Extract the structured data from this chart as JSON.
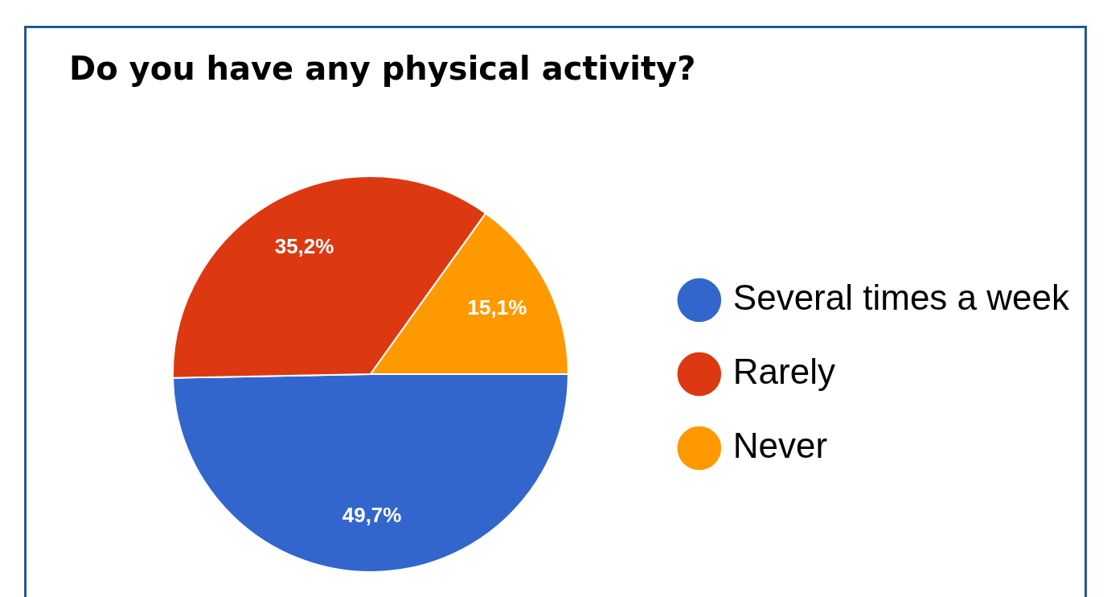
{
  "chart_data": {
    "type": "pie",
    "title": "Do you have any physical activity?",
    "categories": [
      "Several times a week",
      "Rarely",
      "Never"
    ],
    "values": [
      49.7,
      35.2,
      15.1
    ],
    "value_labels": [
      "49,7%",
      "35,2%",
      "15,1%"
    ],
    "colors": [
      "#3366cc",
      "#dc3912",
      "#ff9900"
    ],
    "legend": "right"
  }
}
